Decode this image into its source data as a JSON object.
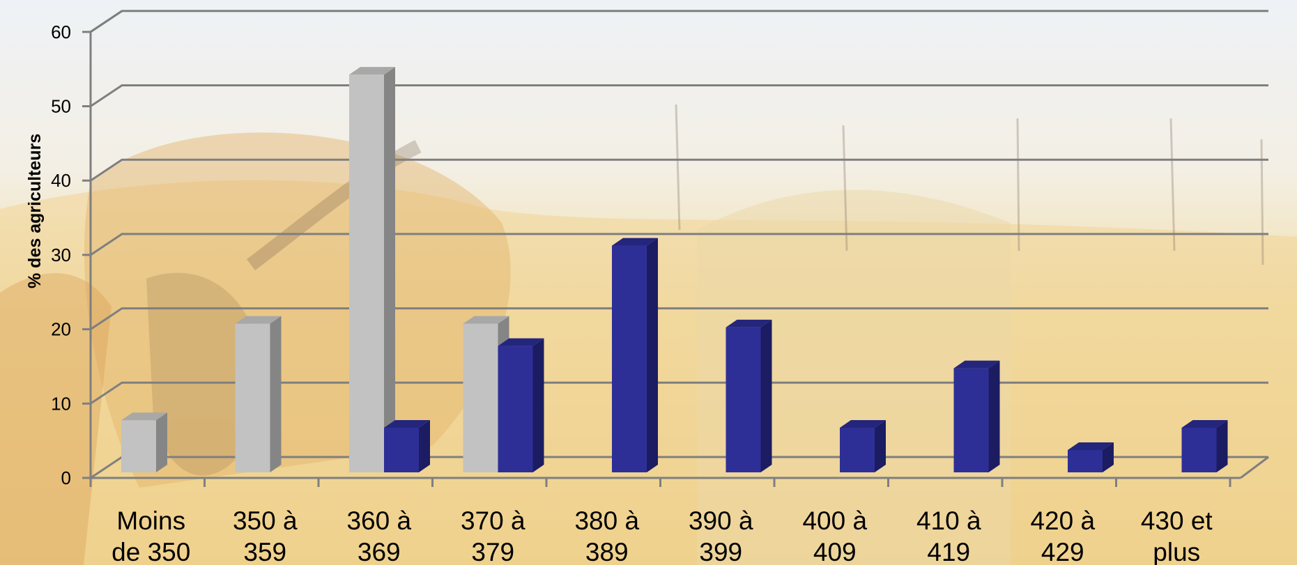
{
  "chart_data": {
    "type": "bar",
    "ylabel": "% des agriculteurs",
    "ylim": [
      0,
      60
    ],
    "yticks": [
      "0",
      "10",
      "20",
      "30",
      "40",
      "50",
      "60"
    ],
    "categories": [
      [
        "Moins",
        "de 350"
      ],
      [
        "350 à",
        "359"
      ],
      [
        "360 à",
        "369"
      ],
      [
        "370 à",
        "379"
      ],
      [
        "380 à",
        "389"
      ],
      [
        "390 à",
        "399"
      ],
      [
        "400 à",
        "409"
      ],
      [
        "410 à",
        "419"
      ],
      [
        "420 à",
        "429"
      ],
      [
        "430 et",
        "plus"
      ]
    ],
    "series": [
      {
        "values": [
          7,
          20,
          53.5,
          20,
          null,
          null,
          null,
          null,
          null,
          null
        ]
      },
      {
        "values": [
          null,
          null,
          6,
          17,
          30.5,
          19.5,
          6,
          14,
          3,
          6
        ]
      }
    ],
    "colors": {
      "series1_front": "#c2c2c2",
      "series1_side": "#858585",
      "series1_top": "#a8a8a8",
      "series2_front": "#2e2f96",
      "series2_side": "#1b1c62",
      "series2_top": "#24257c"
    },
    "grid": true
  }
}
